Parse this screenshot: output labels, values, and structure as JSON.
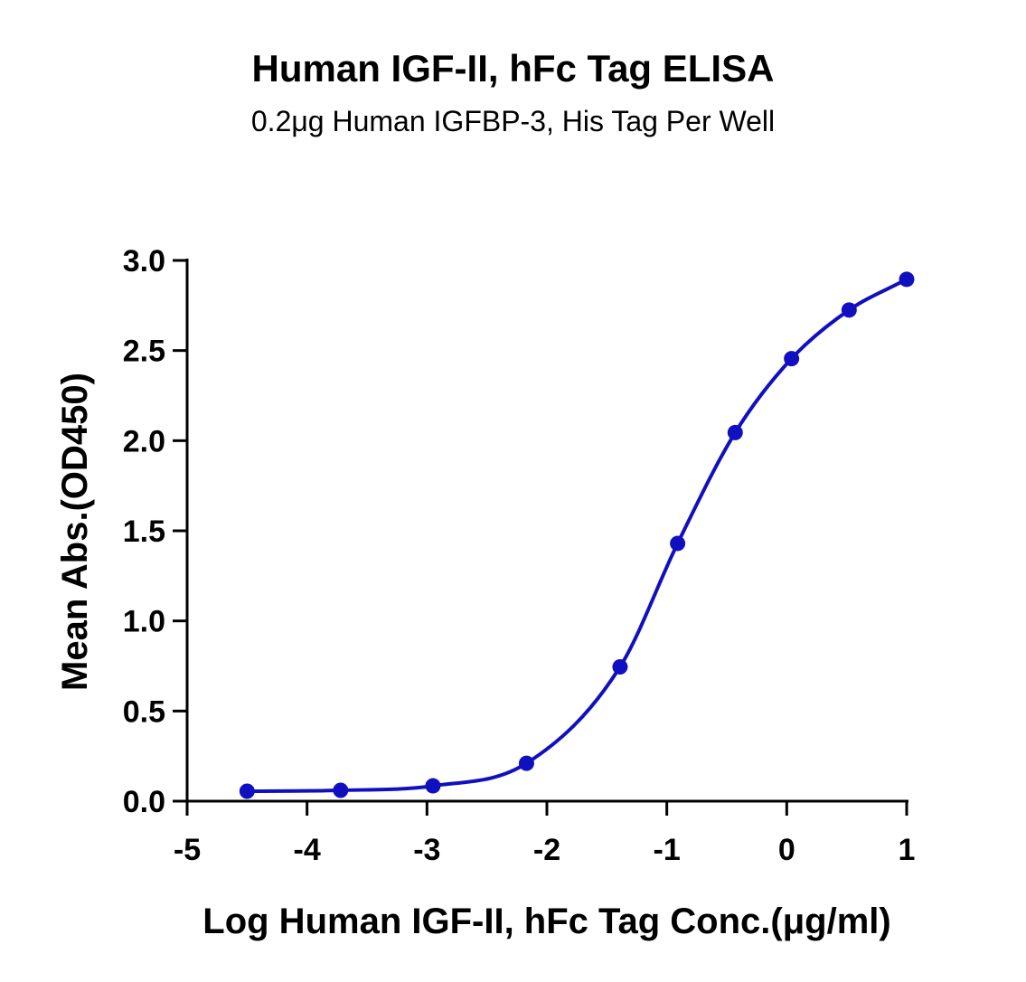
{
  "chart_data": {
    "type": "scatter",
    "title": "Human IGF-II, hFc Tag ELISA",
    "subtitle": "0.2μg Human IGFBP-3, His Tag Per Well",
    "xlabel": "Log Human IGF-II, hFc Tag Conc.(μg/ml)",
    "ylabel": "Mean Abs.(OD450)",
    "xlim": [
      -5,
      1
    ],
    "ylim": [
      0,
      3.0
    ],
    "x_ticks": [
      -5,
      -4,
      -3,
      -2,
      -1,
      0,
      1
    ],
    "x_tick_labels": [
      "-5",
      "-4",
      "-3",
      "-2",
      "-1",
      "0",
      "1"
    ],
    "y_ticks": [
      0,
      0.5,
      1.0,
      1.5,
      2.0,
      2.5,
      3.0
    ],
    "y_tick_labels": [
      "0.0",
      "0.5",
      "1.0",
      "1.5",
      "2.0",
      "2.5",
      "3.0"
    ],
    "grid": false,
    "series": [
      {
        "x": [
          -4.5,
          -3.72,
          -2.95,
          -2.17,
          -1.39,
          -0.91,
          -0.43,
          0.04,
          0.52,
          1.0
        ],
        "y": [
          0.055,
          0.06,
          0.085,
          0.21,
          0.745,
          1.43,
          2.045,
          2.455,
          2.725,
          2.895
        ],
        "fit": "4PL",
        "color": "#1010c0"
      }
    ]
  }
}
